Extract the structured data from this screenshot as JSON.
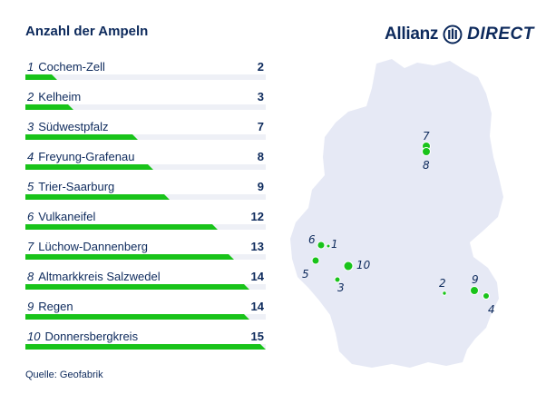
{
  "title": "Anzahl der Ampeln",
  "logo": {
    "brand": "Allianz",
    "sub": "DIRECT"
  },
  "source": "Quelle: Geofabrik",
  "colors": {
    "bar": "#19c31a",
    "track": "#eef0f6",
    "text": "#0d2a5c",
    "map": "#e6e9f5"
  },
  "chart_data": {
    "type": "bar",
    "title": "Anzahl der Ampeln",
    "max": 15,
    "items": [
      {
        "rank": "1",
        "name": "Cochem-Zell",
        "value": 2
      },
      {
        "rank": "2",
        "name": "Kelheim",
        "value": 3
      },
      {
        "rank": "3",
        "name": "Südwestpfalz",
        "value": 7
      },
      {
        "rank": "4",
        "name": "Freyung-Grafenau",
        "value": 8
      },
      {
        "rank": "5",
        "name": "Trier-Saarburg",
        "value": 9
      },
      {
        "rank": "6",
        "name": "Vulkaneifel",
        "value": 12
      },
      {
        "rank": "7",
        "name": "Lüchow-Dannenberg",
        "value": 13
      },
      {
        "rank": "8",
        "name": "Altmarkkreis Salzwedel",
        "value": 14
      },
      {
        "rank": "9",
        "name": "Regen",
        "value": 14
      },
      {
        "rank": "10",
        "name": "Donnersbergkreis",
        "value": 15
      }
    ]
  },
  "map": {
    "labels": [
      "1",
      "2",
      "3",
      "4",
      "5",
      "6",
      "7",
      "8",
      "9",
      "10"
    ]
  }
}
